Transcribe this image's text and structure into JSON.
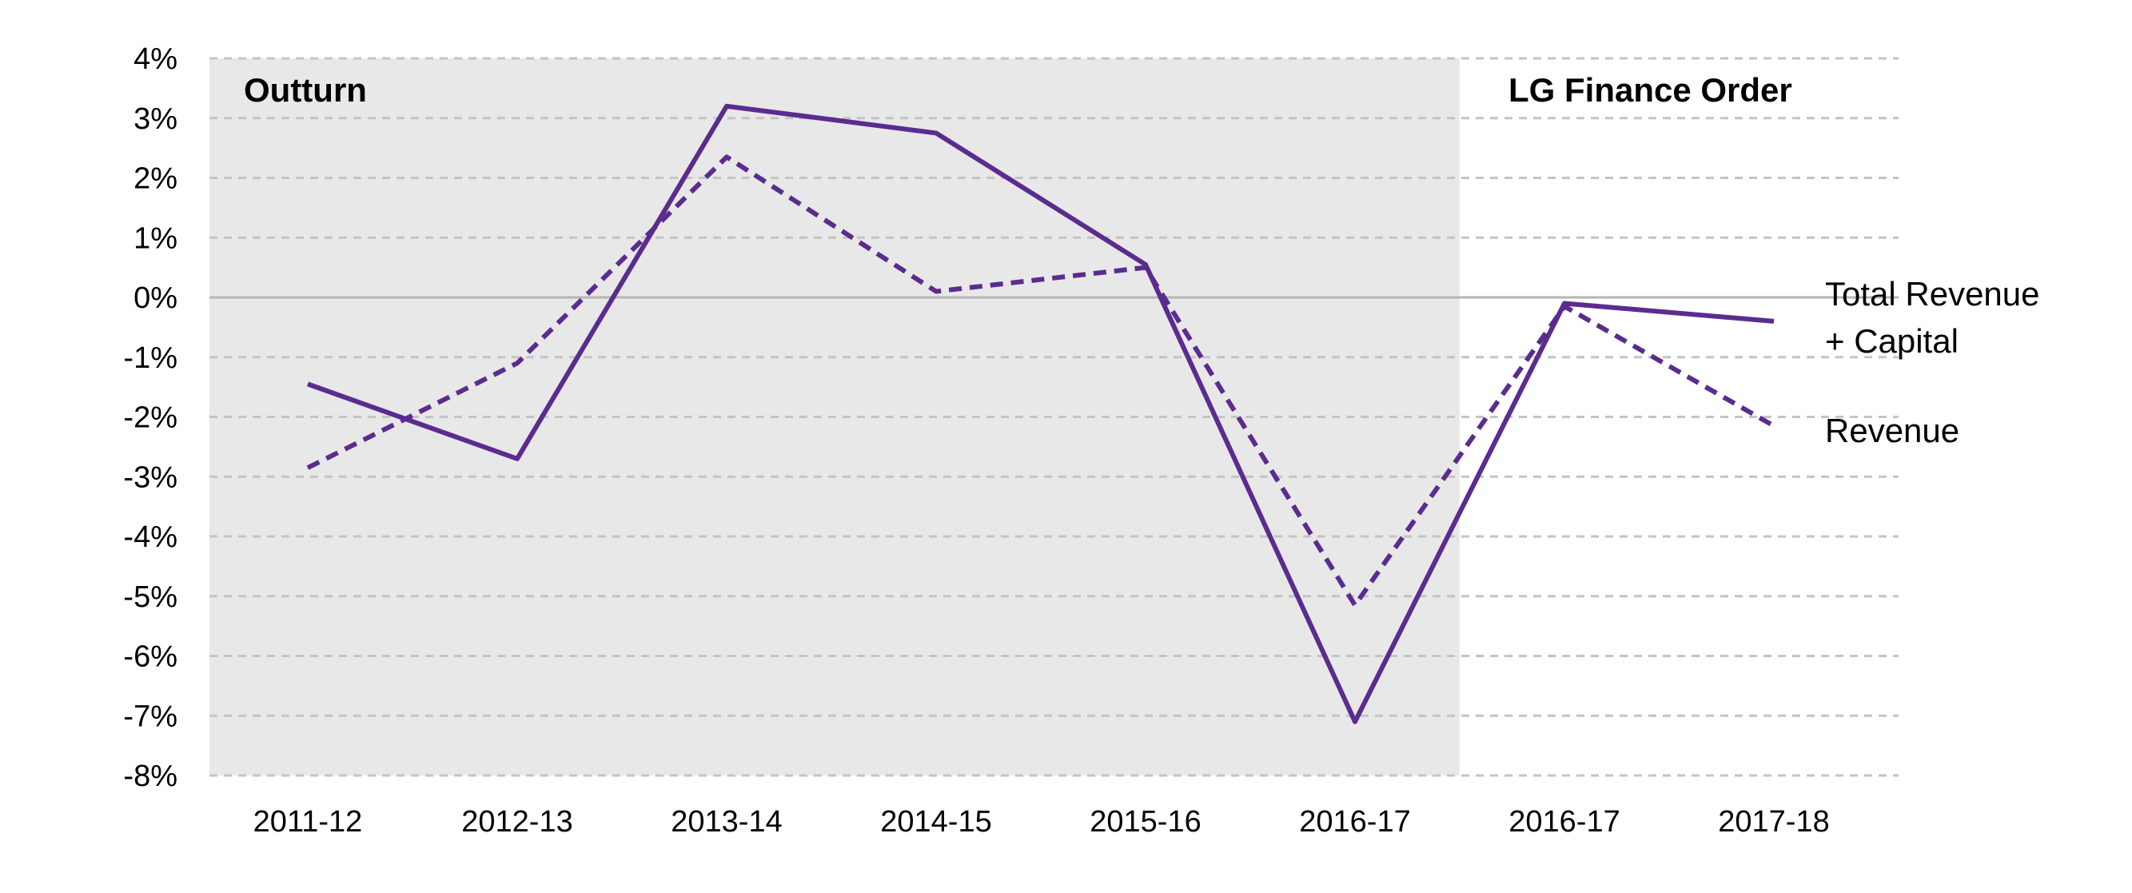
{
  "chart_data": {
    "type": "line",
    "categories": [
      "2011-12",
      "2012-13",
      "2013-14",
      "2014-15",
      "2015-16",
      "2016-17",
      "2016-17",
      "2017-18"
    ],
    "series": [
      {
        "name": "Total Revenue + Capital",
        "name_lines": [
          "Total Revenue",
          "+ Capital"
        ],
        "style": "solid",
        "color": "#5b2c8f",
        "values": [
          -1.45,
          -2.7,
          3.2,
          2.75,
          0.55,
          -7.1,
          -0.1,
          -0.4
        ]
      },
      {
        "name": "Revenue",
        "name_lines": [
          "Revenue"
        ],
        "style": "dashed",
        "color": "#5b2c8f",
        "values": [
          -2.85,
          -1.1,
          2.35,
          0.1,
          0.5,
          -5.15,
          -0.15,
          -2.15
        ]
      }
    ],
    "ylim": [
      -8,
      4
    ],
    "yticks": [
      4,
      3,
      2,
      1,
      0,
      -1,
      -2,
      -3,
      -4,
      -5,
      -6,
      -7,
      -8
    ],
    "ytick_labels": [
      "4%",
      "3%",
      "2%",
      "1%",
      "0%",
      "-1%",
      "-2%",
      "-3%",
      "-4%",
      "-5%",
      "-6%",
      "-7%",
      "-8%"
    ],
    "regions": [
      {
        "label": "Outturn",
        "categories": [
          "2011-12",
          "2016-17"
        ],
        "shaded": true,
        "fill": "#e8e8e8"
      },
      {
        "label": "LG Finance Order",
        "categories": [
          "2016-17",
          "2017-18"
        ],
        "shaded": false
      }
    ],
    "grid": "horizontal-dashed",
    "zero_line": true,
    "legend": "right, inline labels"
  }
}
